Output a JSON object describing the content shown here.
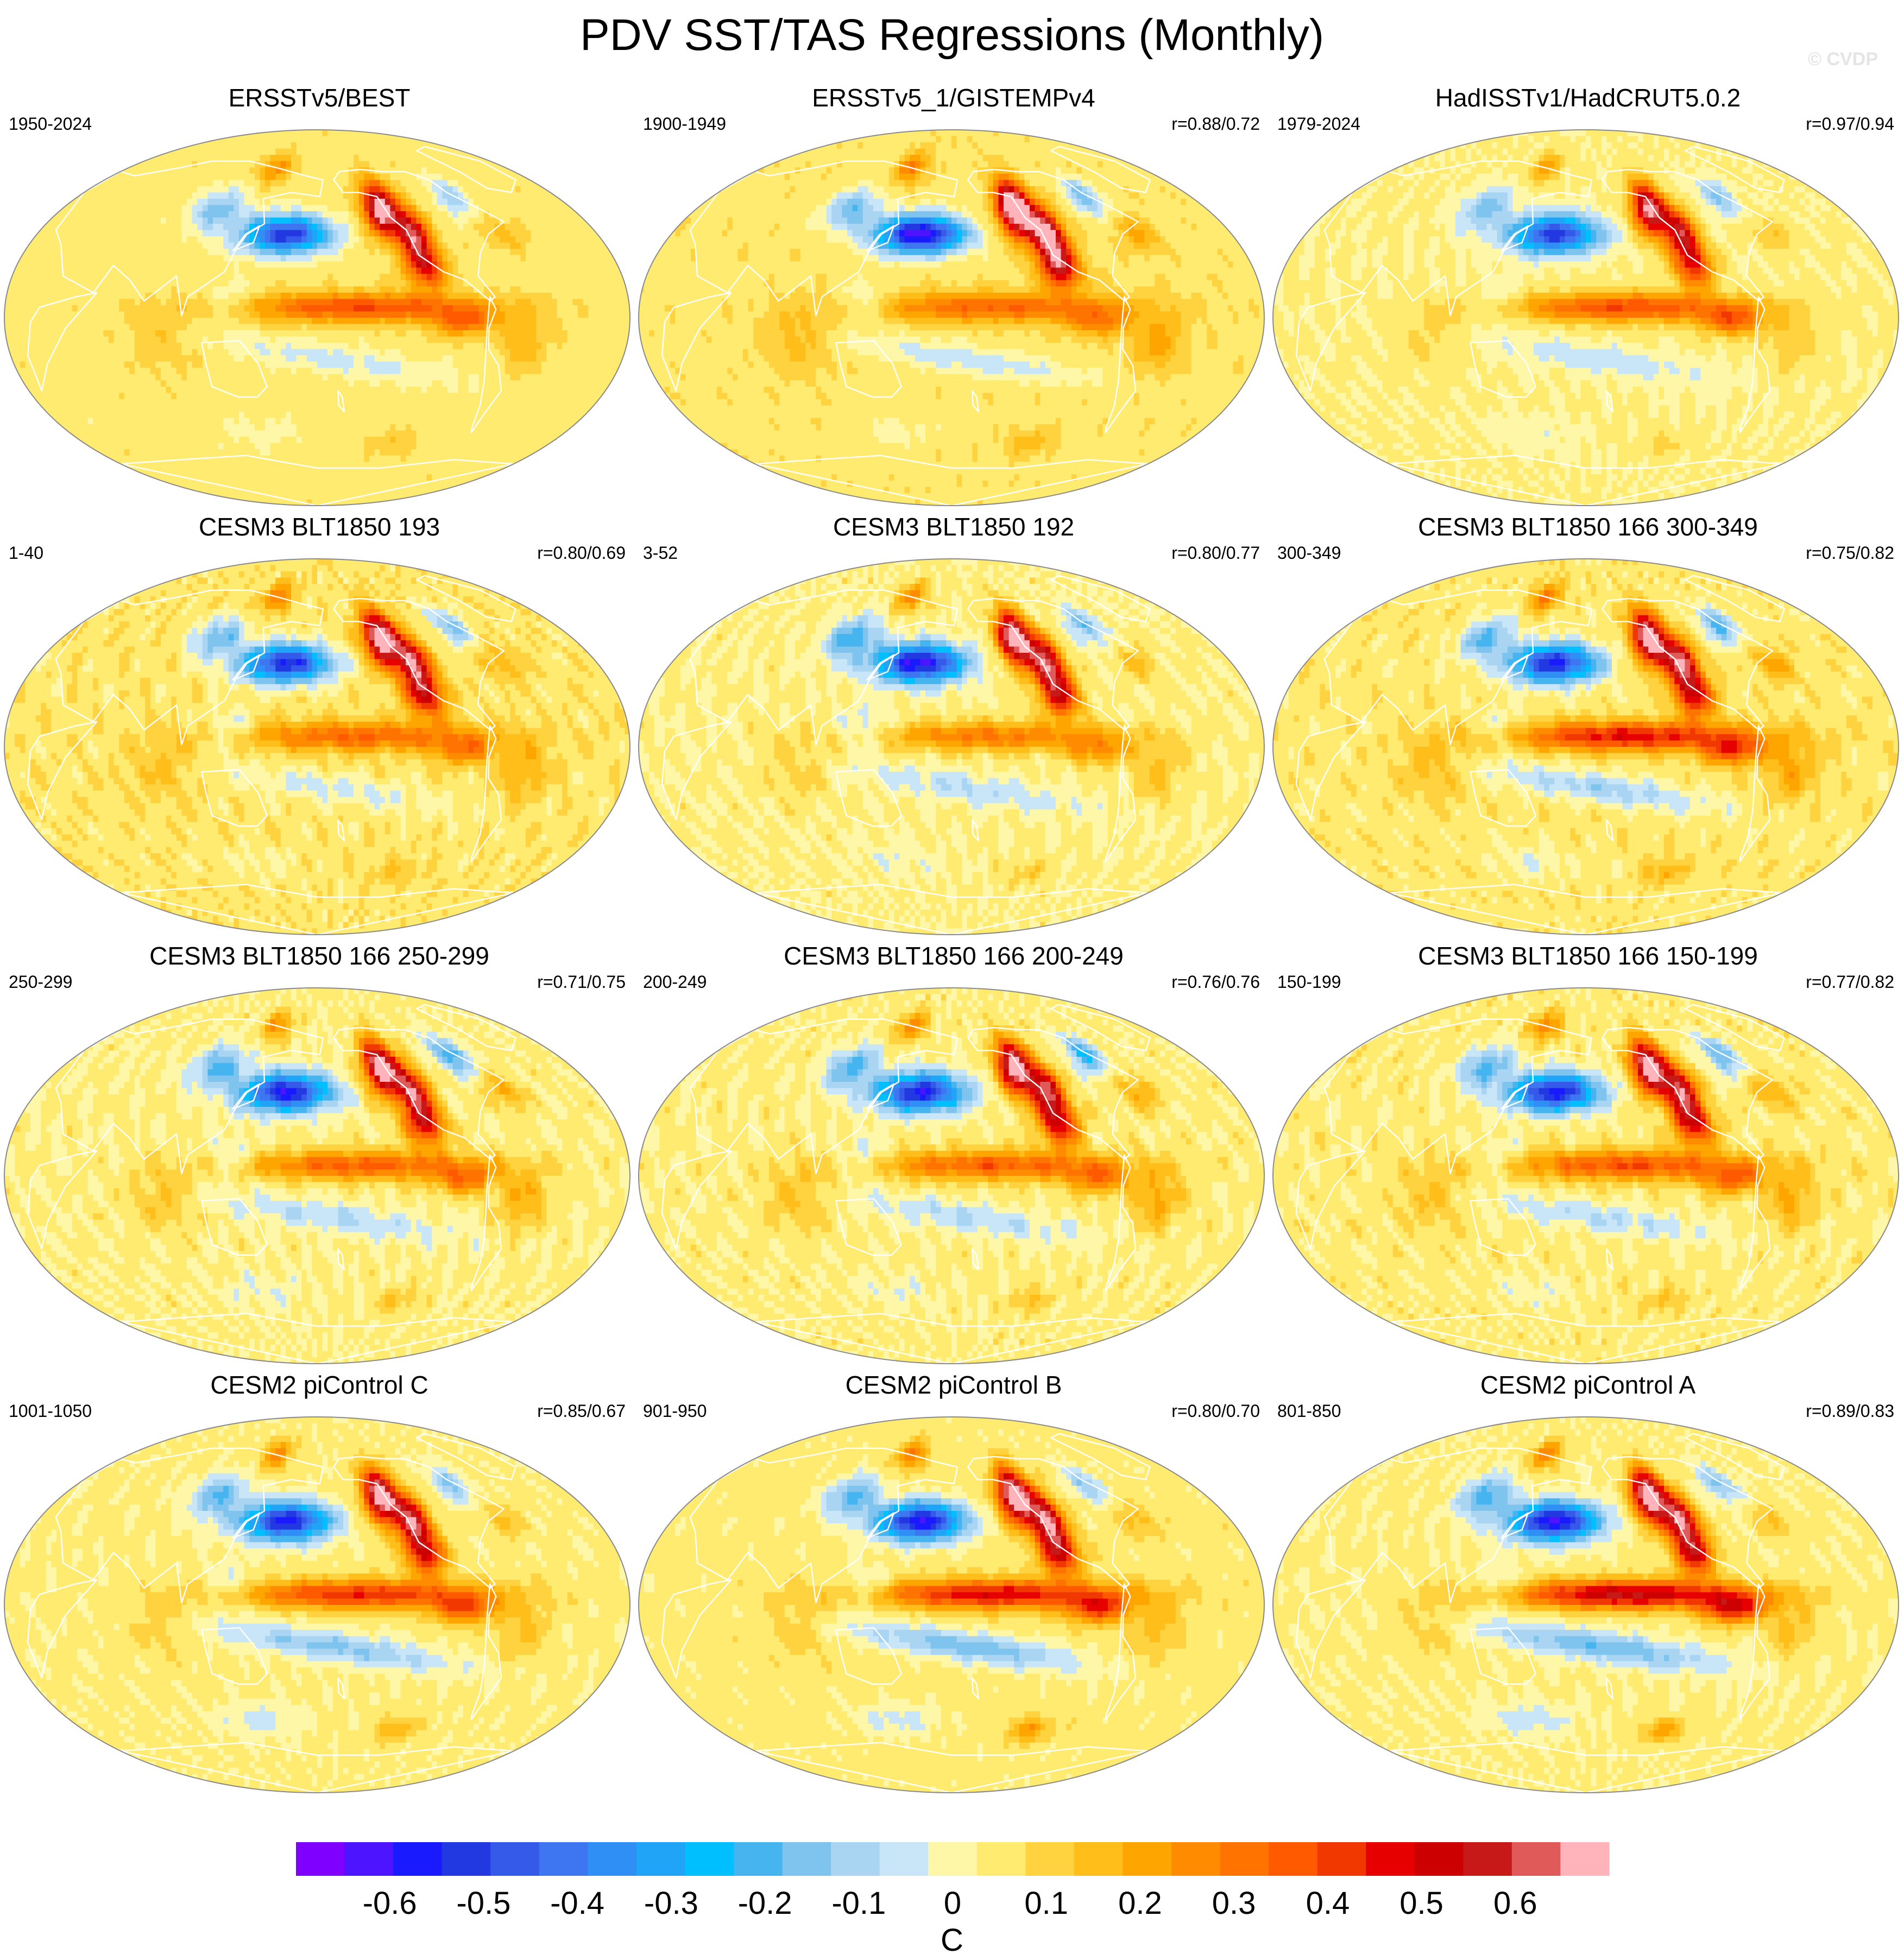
{
  "page": {
    "title": "PDV SST/TAS Regressions (Monthly)",
    "copyright": "© CVDP"
  },
  "colors": {
    "ocean_base": "#fff6a0",
    "coast": "#ffffff",
    "outline": "#8a8a8a"
  },
  "chart_data": {
    "type": "heatmap",
    "projection": "robinson (Pacific-centred)",
    "variable": "SST/TAS regression onto PDV index",
    "units": "C",
    "colorbar": {
      "ticks": [
        "-0.6",
        "-0.5",
        "-0.4",
        "-0.3",
        "-0.2",
        "-0.1",
        "0",
        "0.1",
        "0.2",
        "0.3",
        "0.4",
        "0.5",
        "0.6"
      ],
      "tick_values": [
        -0.6,
        -0.5,
        -0.4,
        -0.3,
        -0.2,
        -0.1,
        0,
        0.1,
        0.2,
        0.3,
        0.4,
        0.5,
        0.6
      ],
      "units_label": "C",
      "levels_range": [
        -0.7,
        0.7
      ],
      "level_step": 0.05,
      "colors": [
        "#8000ff",
        "#4c14ff",
        "#1a1aff",
        "#2238e0",
        "#3559e8",
        "#3d76f0",
        "#2f8ff5",
        "#1fa4f7",
        "#00bfff",
        "#45b4ef",
        "#7fc4ee",
        "#a9d5f2",
        "#c8e6f7",
        "#fff7a8",
        "#ffeb70",
        "#ffd23f",
        "#ffbe1a",
        "#ffa500",
        "#ff8c00",
        "#ff7300",
        "#ff5a00",
        "#f03800",
        "#e60000",
        "#cc0000",
        "#c81919",
        "#e05a5a",
        "#ffb4bb"
      ]
    },
    "panels": [
      {
        "title": "ERSSTv5/BEST",
        "period": "1950-2024",
        "corr": "",
        "amp": 1.0,
        "pdo": 0.95,
        "enso": 0.85,
        "nwp": 0.85,
        "atl": 0.6,
        "so": 0.4,
        "noise": 0.3,
        "seed": 3
      },
      {
        "title": "ERSSTv5_1/GISTEMPv4",
        "period": "1900-1949",
        "corr": "r=0.88/0.72",
        "amp": 1.0,
        "pdo": 1.15,
        "enso": 0.7,
        "nwp": 0.95,
        "atl": 0.8,
        "so": 0.5,
        "noise": 0.25,
        "seed": 7
      },
      {
        "title": "HadISSTv1/HadCRUT5.0.2",
        "period": "1979-2024",
        "corr": "r=0.97/0.94",
        "amp": 1.0,
        "pdo": 0.9,
        "enso": 0.9,
        "nwp": 0.75,
        "atl": 0.55,
        "so": 0.35,
        "noise": 0.3,
        "seed": 11
      },
      {
        "title": "CESM3 BLT1850 193",
        "period": "1-40",
        "corr": "r=0.80/0.69",
        "amp": 1.0,
        "pdo": 1.0,
        "enso": 0.7,
        "nwp": 0.95,
        "atl": 0.7,
        "so": 0.4,
        "noise": 0.55,
        "seed": 13
      },
      {
        "title": "CESM3 BLT1850 192",
        "period": "3-52",
        "corr": "r=0.80/0.77",
        "amp": 1.0,
        "pdo": 1.05,
        "enso": 0.65,
        "nwp": 1.0,
        "atl": 0.65,
        "so": 0.4,
        "noise": 0.55,
        "seed": 17
      },
      {
        "title": "CESM3 BLT1850 166 300-349",
        "period": "300-349",
        "corr": "r=0.75/0.82",
        "amp": 1.0,
        "pdo": 1.0,
        "enso": 1.05,
        "nwp": 1.0,
        "atl": 0.85,
        "so": 0.6,
        "noise": 0.5,
        "seed": 19
      },
      {
        "title": "CESM3 BLT1850 166 250-299",
        "period": "250-299",
        "corr": "r=0.71/0.75",
        "amp": 1.0,
        "pdo": 1.0,
        "enso": 0.8,
        "nwp": 0.9,
        "atl": 0.85,
        "so": 0.45,
        "noise": 0.55,
        "seed": 23
      },
      {
        "title": "CESM3 BLT1850 166 200-249",
        "period": "200-249",
        "corr": "r=0.76/0.76",
        "amp": 1.0,
        "pdo": 1.0,
        "enso": 0.8,
        "nwp": 0.95,
        "atl": 0.9,
        "so": 0.45,
        "noise": 0.55,
        "seed": 29
      },
      {
        "title": "CESM3 BLT1850 166 150-199",
        "period": "150-199",
        "corr": "r=0.77/0.82",
        "amp": 1.0,
        "pdo": 1.0,
        "enso": 0.85,
        "nwp": 0.95,
        "atl": 0.8,
        "so": 0.45,
        "noise": 0.55,
        "seed": 31
      },
      {
        "title": "CESM2 piControl C",
        "period": "1001-1050",
        "corr": "r=0.85/0.67",
        "amp": 1.0,
        "pdo": 1.0,
        "enso": 1.0,
        "nwp": 0.9,
        "atl": 0.6,
        "so": 0.7,
        "noise": 0.35,
        "seed": 37
      },
      {
        "title": "CESM2 piControl B",
        "period": "901-950",
        "corr": "r=0.80/0.70",
        "amp": 1.0,
        "pdo": 1.05,
        "enso": 1.1,
        "nwp": 1.0,
        "atl": 0.6,
        "so": 0.8,
        "noise": 0.35,
        "seed": 41
      },
      {
        "title": "CESM2 piControl A",
        "period": "801-850",
        "corr": "r=0.89/0.83",
        "amp": 1.0,
        "pdo": 1.05,
        "enso": 1.3,
        "nwp": 1.0,
        "atl": 0.6,
        "so": 0.8,
        "noise": 0.35,
        "seed": 43
      }
    ]
  }
}
